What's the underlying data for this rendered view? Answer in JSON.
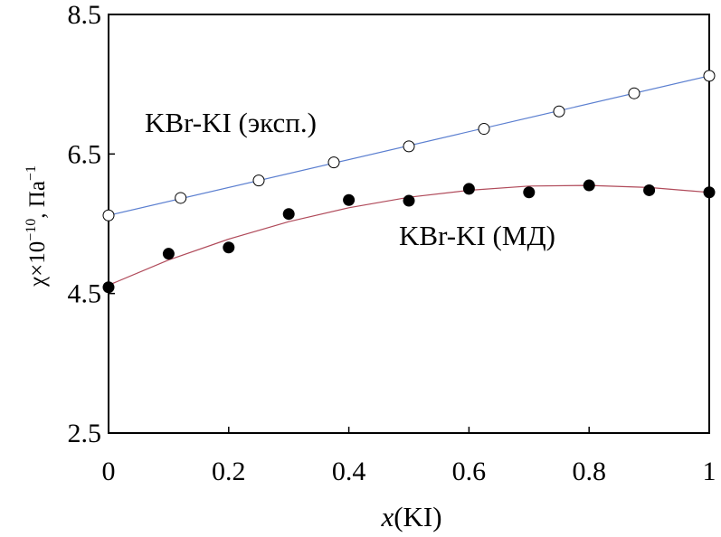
{
  "chart_data": {
    "type": "scatter",
    "x_axis": {
      "label_var": "x",
      "label_rest": "(KI)",
      "ticks": [
        "0",
        "0.2",
        "0.4",
        "0.6",
        "0.8",
        "1"
      ],
      "tick_values": [
        0,
        0.2,
        0.4,
        0.6,
        0.8,
        1.0
      ],
      "range": [
        0,
        1
      ]
    },
    "y_axis": {
      "label_main": "χ×10",
      "label_exp": "−10",
      "label_mid": ", Па",
      "label_exp2": "−1",
      "ticks": [
        "2.5",
        "4.5",
        "6.5",
        "8.5"
      ],
      "tick_values": [
        2.5,
        4.5,
        6.5,
        8.5
      ],
      "range": [
        2.5,
        8.5
      ]
    },
    "grid": false,
    "series": [
      {
        "name": "KBr-KI (эксп.)",
        "marker": "open-circle",
        "line_color": "#5b7fd0",
        "x": [
          0.0,
          0.12,
          0.25,
          0.375,
          0.5,
          0.625,
          0.75,
          0.875,
          1.0
        ],
        "y": [
          5.62,
          5.87,
          6.12,
          6.38,
          6.61,
          6.86,
          7.11,
          7.37,
          7.62
        ],
        "fit": [
          5.62,
          7.62
        ]
      },
      {
        "name": "KBr-KI (МД)",
        "marker": "filled-circle",
        "line_color": "#b04a5a",
        "x": [
          0.0,
          0.1,
          0.2,
          0.3,
          0.4,
          0.5,
          0.6,
          0.7,
          0.8,
          0.9,
          1.0
        ],
        "y": [
          4.59,
          5.07,
          5.16,
          5.64,
          5.84,
          5.83,
          6.0,
          5.95,
          6.05,
          5.98,
          5.95
        ],
        "fit_x": [
          0.0,
          0.1,
          0.2,
          0.3,
          0.4,
          0.5,
          0.6,
          0.7,
          0.8,
          0.9,
          1.0
        ],
        "fit_y": [
          4.62,
          4.98,
          5.28,
          5.53,
          5.73,
          5.88,
          5.98,
          6.04,
          6.05,
          6.02,
          5.95
        ]
      }
    ]
  }
}
